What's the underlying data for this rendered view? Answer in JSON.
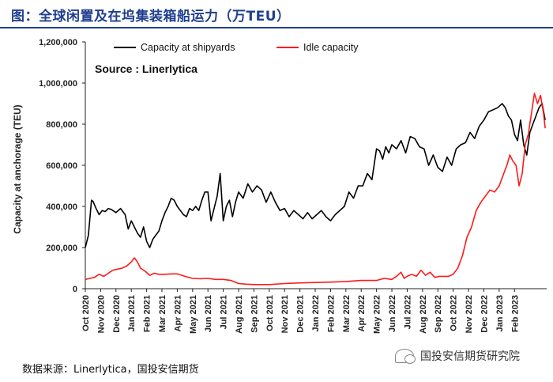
{
  "figure_title": "图：全球闲置及在坞集装箱船运力（万TEU）",
  "source_note": "数据来源：Linerlytica，国投安信期货",
  "brand": "国投安信期货研究院",
  "colors": {
    "title": "#1f3f8f",
    "shipyards": "#000000",
    "idle": "#ff1a1a",
    "axis": "#222222"
  },
  "chart_data": {
    "type": "line",
    "ylabel": "Capacity at anchorage (TEU)",
    "annotation": "Source : Linerlytica",
    "ylim": [
      0,
      1200000
    ],
    "yticks": [
      0,
      200000,
      400000,
      600000,
      800000,
      1000000,
      1200000
    ],
    "ytick_labels": [
      "0",
      "200,000",
      "400,000",
      "600,000",
      "800,000",
      "1,000,000",
      "1,200,000"
    ],
    "x_range": [
      0,
      30.1
    ],
    "xtick_labels": [
      "Oct 2020",
      "Nov 2020",
      "Dec 2020",
      "Jan 2021",
      "Feb 2021",
      "Mar 2021",
      "Apr 2021",
      "May 2021",
      "Jun 2021",
      "Jul 2021",
      "Aug 2021",
      "Sep 2021",
      "Oct 2021",
      "Nov 2021",
      "Dec 2021",
      "Jan 2022",
      "Feb 2022",
      "Mar 2022",
      "Apr 2022",
      "May 2022",
      "Jun 2022",
      "Jul 2022",
      "Aug 2022",
      "Sep 2022",
      "Oct 2022",
      "Nov 2022",
      "Dec 2022",
      "Jan 2023",
      "Feb 2023"
    ],
    "grid": false,
    "legend": "top",
    "series": [
      {
        "name": "Capacity at shipyards",
        "color": "#000000",
        "x": [
          0,
          0.2,
          0.4,
          0.5,
          0.7,
          0.9,
          1.1,
          1.3,
          1.5,
          1.7,
          2.0,
          2.3,
          2.6,
          2.8,
          3.0,
          3.2,
          3.4,
          3.6,
          3.8,
          4.0,
          4.2,
          4.4,
          4.6,
          4.8,
          5.0,
          5.2,
          5.4,
          5.6,
          5.8,
          6.0,
          6.2,
          6.4,
          6.6,
          6.8,
          7.0,
          7.2,
          7.4,
          7.6,
          7.8,
          8.0,
          8.2,
          8.4,
          8.6,
          8.8,
          9.0,
          9.2,
          9.4,
          9.6,
          9.8,
          10.0,
          10.3,
          10.6,
          10.9,
          11.2,
          11.5,
          11.8,
          12.1,
          12.4,
          12.7,
          13.0,
          13.3,
          13.6,
          13.9,
          14.2,
          14.5,
          14.8,
          15.1,
          15.4,
          15.7,
          16.0,
          16.3,
          16.6,
          16.9,
          17.2,
          17.5,
          17.8,
          18.1,
          18.4,
          18.7,
          19.0,
          19.2,
          19.4,
          19.6,
          19.8,
          20.0,
          20.3,
          20.6,
          20.9,
          21.2,
          21.5,
          21.8,
          22.1,
          22.4,
          22.7,
          23.0,
          23.3,
          23.6,
          23.9,
          24.2,
          24.5,
          24.8,
          25.1,
          25.4,
          25.7,
          26.0,
          26.3,
          26.6,
          26.9,
          27.2,
          27.4,
          27.6,
          27.8,
          28.0,
          28.2,
          28.4,
          28.6,
          28.8,
          29.0,
          29.2,
          29.4,
          29.6,
          29.8,
          30.0
        ],
        "values": [
          200000,
          260000,
          430000,
          425000,
          390000,
          360000,
          380000,
          375000,
          390000,
          385000,
          370000,
          390000,
          360000,
          290000,
          330000,
          300000,
          270000,
          250000,
          300000,
          230000,
          200000,
          240000,
          260000,
          280000,
          330000,
          370000,
          400000,
          440000,
          430000,
          400000,
          380000,
          360000,
          350000,
          390000,
          380000,
          400000,
          380000,
          430000,
          470000,
          470000,
          330000,
          390000,
          450000,
          560000,
          330000,
          400000,
          430000,
          350000,
          420000,
          470000,
          440000,
          510000,
          470000,
          500000,
          480000,
          420000,
          470000,
          420000,
          380000,
          390000,
          350000,
          380000,
          360000,
          340000,
          370000,
          340000,
          360000,
          380000,
          350000,
          330000,
          360000,
          380000,
          400000,
          470000,
          440000,
          500000,
          500000,
          560000,
          530000,
          680000,
          670000,
          630000,
          690000,
          660000,
          700000,
          680000,
          720000,
          660000,
          740000,
          730000,
          690000,
          680000,
          600000,
          650000,
          590000,
          570000,
          640000,
          600000,
          680000,
          700000,
          710000,
          760000,
          730000,
          790000,
          820000,
          860000,
          870000,
          880000,
          900000,
          880000,
          840000,
          820000,
          750000,
          720000,
          820000,
          700000,
          650000,
          760000,
          800000,
          840000,
          880000,
          900000,
          820000
        ]
      },
      {
        "name": "Idle capacity",
        "color": "#ff1a1a",
        "x": [
          0,
          0.3,
          0.6,
          0.9,
          1.2,
          1.5,
          1.8,
          2.1,
          2.4,
          2.7,
          3.0,
          3.2,
          3.4,
          3.6,
          3.9,
          4.2,
          4.5,
          4.8,
          5.2,
          5.6,
          6.0,
          6.5,
          7.0,
          7.5,
          8.0,
          8.5,
          9.0,
          9.5,
          10.0,
          10.5,
          11.0,
          12.0,
          13.0,
          14.0,
          15.0,
          16.0,
          17.0,
          18.0,
          19.0,
          19.5,
          20.0,
          20.3,
          20.6,
          20.8,
          21.0,
          21.3,
          21.6,
          21.9,
          22.2,
          22.5,
          22.8,
          23.1,
          23.4,
          23.7,
          24.0,
          24.3,
          24.6,
          24.9,
          25.2,
          25.5,
          25.8,
          26.1,
          26.4,
          26.7,
          27.0,
          27.3,
          27.5,
          27.7,
          27.9,
          28.1,
          28.3,
          28.5,
          28.7,
          28.9,
          29.1,
          29.3,
          29.5,
          29.7,
          29.9,
          30.0
        ],
        "values": [
          45000,
          50000,
          55000,
          70000,
          60000,
          75000,
          90000,
          95000,
          100000,
          110000,
          130000,
          150000,
          130000,
          100000,
          85000,
          65000,
          75000,
          70000,
          70000,
          72000,
          72000,
          60000,
          50000,
          48000,
          50000,
          45000,
          45000,
          40000,
          25000,
          22000,
          20000,
          20000,
          25000,
          28000,
          30000,
          32000,
          35000,
          40000,
          40000,
          50000,
          45000,
          60000,
          80000,
          50000,
          60000,
          70000,
          60000,
          90000,
          65000,
          80000,
          55000,
          60000,
          60000,
          60000,
          70000,
          100000,
          160000,
          250000,
          300000,
          380000,
          420000,
          450000,
          480000,
          470000,
          500000,
          560000,
          600000,
          650000,
          620000,
          600000,
          500000,
          560000,
          700000,
          750000,
          850000,
          950000,
          900000,
          940000,
          850000,
          780000
        ]
      }
    ]
  }
}
